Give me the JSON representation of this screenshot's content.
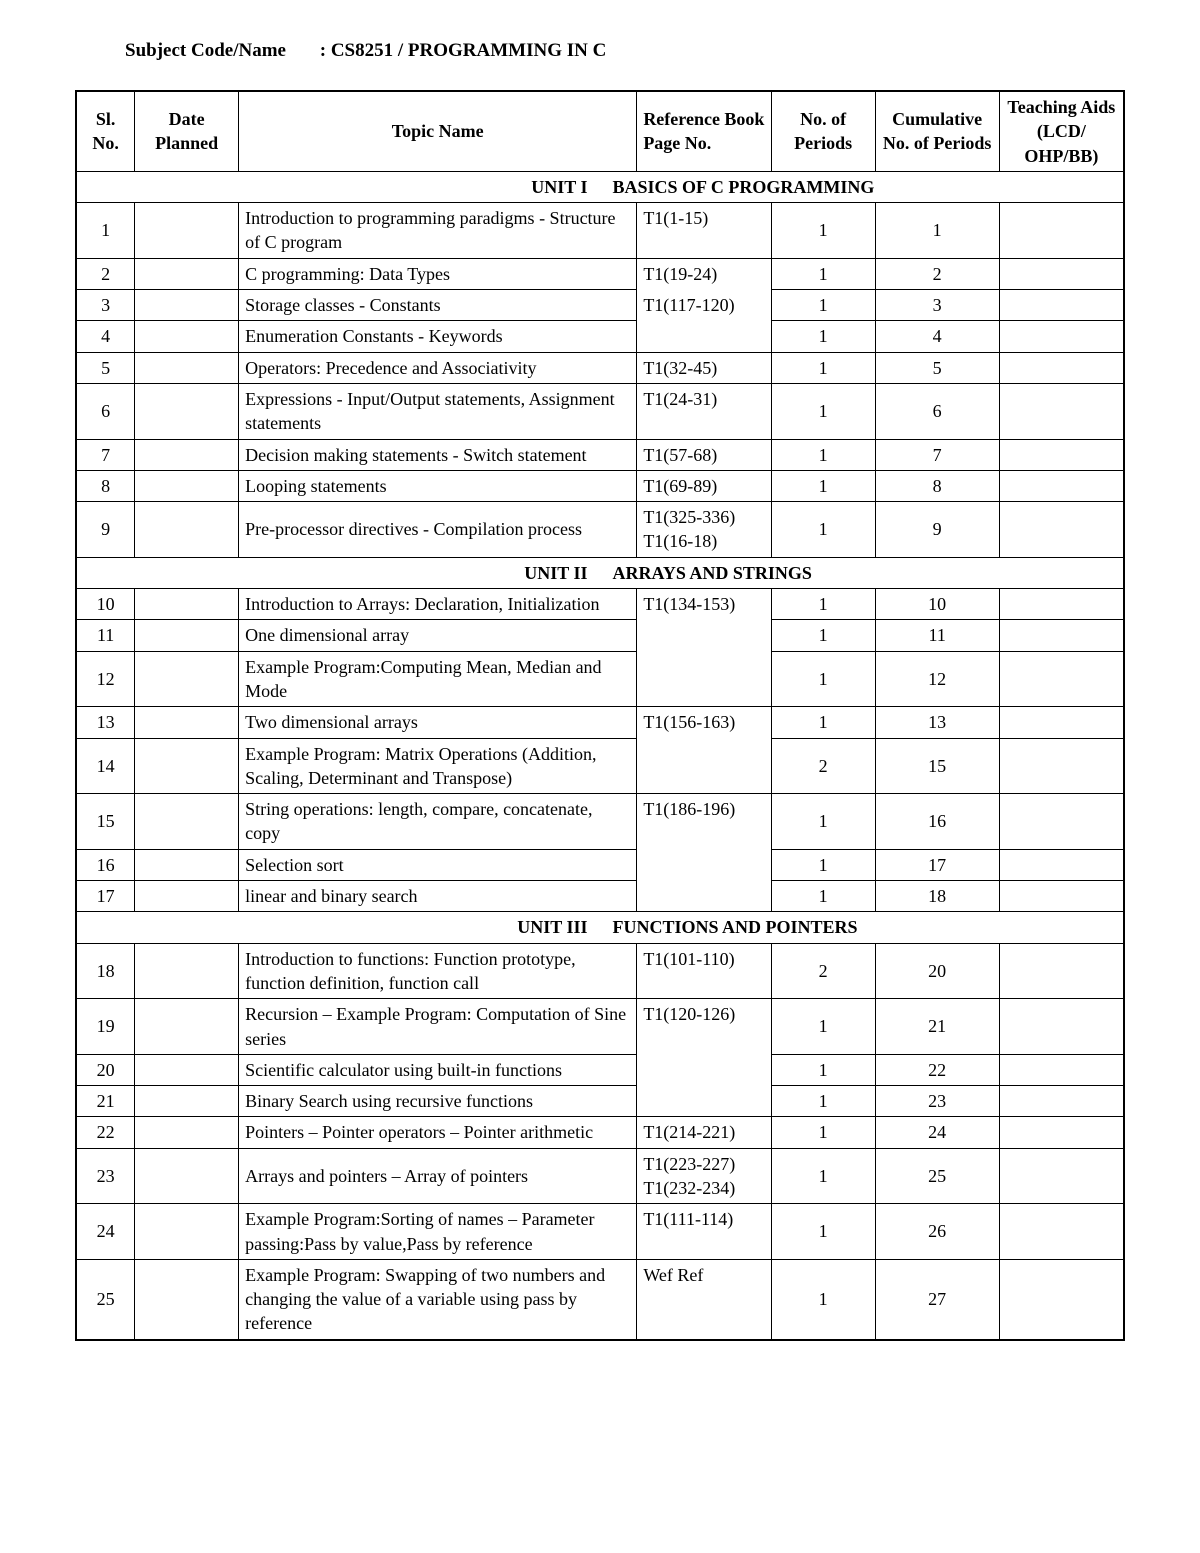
{
  "subject_label": "Subject Code/Name",
  "subject_value": ": CS8251 / PROGRAMMING IN C",
  "headers": {
    "sl": "Sl. No.",
    "date": "Date Planned",
    "topic": "Topic Name",
    "ref": "Reference Book Page No.",
    "periods": "No. of Periods",
    "cum": "Cumulative No. of Periods",
    "aids": "Teaching Aids (LCD/ OHP/BB)"
  },
  "units": [
    {
      "label": "UNIT I",
      "title": "BASICS OF C PROGRAMMING"
    },
    {
      "label": "UNIT II",
      "title": "ARRAYS AND STRINGS"
    },
    {
      "label": "UNIT III",
      "title": "FUNCTIONS AND POINTERS"
    }
  ],
  "rows": {
    "u1": [
      {
        "sl": "1",
        "topic": "Introduction to programming paradigms - Structure of C program",
        "ref": "T1(1-15)",
        "per": "1",
        "cum": "1",
        "ref_open": false
      },
      {
        "sl": "2",
        "topic": "C programming: Data Types",
        "ref": "T1(19-24)",
        "per": "1",
        "cum": "2",
        "ref_open": true
      },
      {
        "sl": "3",
        "topic": "Storage classes - Constants",
        "ref": "T1(117-120)",
        "per": "1",
        "cum": "3",
        "ref_open": true,
        "ref_cont": true
      },
      {
        "sl": "4",
        "topic": "Enumeration Constants - Keywords",
        "ref": "",
        "per": "1",
        "cum": "4",
        "ref_cont": true
      },
      {
        "sl": "5",
        "topic": "Operators: Precedence and Associativity",
        "ref": "T1(32-45)",
        "per": "1",
        "cum": "5"
      },
      {
        "sl": "6",
        "topic": "Expressions - Input/Output statements, Assignment statements",
        "ref": "T1(24-31)",
        "per": "1",
        "cum": "6"
      },
      {
        "sl": "7",
        "topic": "Decision making statements - Switch statement",
        "ref": "T1(57-68)",
        "per": "1",
        "cum": "7"
      },
      {
        "sl": "8",
        "topic": "Looping statements",
        "ref": "T1(69-89)",
        "per": "1",
        "cum": "8"
      },
      {
        "sl": "9",
        "topic": "Pre-processor directives - Compilation process",
        "ref": "T1(325-336) T1(16-18)",
        "per": "1",
        "cum": "9"
      }
    ],
    "u2": [
      {
        "sl": "10",
        "topic": "Introduction to Arrays: Declaration, Initialization",
        "ref": "T1(134-153)",
        "per": "1",
        "cum": "10",
        "ref_open": true
      },
      {
        "sl": "11",
        "topic": "One dimensional array",
        "ref": "",
        "per": "1",
        "cum": "11",
        "ref_cont": true,
        "ref_open": true
      },
      {
        "sl": "12",
        "topic": "Example Program:Computing Mean, Median and Mode",
        "ref": "",
        "per": "1",
        "cum": "12",
        "ref_cont": true
      },
      {
        "sl": "13",
        "topic": "Two dimensional arrays",
        "ref": "T1(156-163)",
        "per": "1",
        "cum": "13",
        "ref_open": true
      },
      {
        "sl": "14",
        "topic": "Example Program: Matrix Operations (Addition, Scaling, Determinant and Transpose)",
        "ref": "",
        "per": "2",
        "cum": "15",
        "ref_cont": true
      },
      {
        "sl": "15",
        "topic": "String operations: length, compare, concatenate, copy",
        "ref": "T1(186-196)",
        "per": "1",
        "cum": "16",
        "ref_open": true
      },
      {
        "sl": "16",
        "topic": "Selection sort",
        "ref": "",
        "per": "1",
        "cum": "17",
        "ref_cont": true,
        "ref_open": true
      },
      {
        "sl": "17",
        "topic": "linear and binary search",
        "ref": "",
        "per": "1",
        "cum": "18",
        "ref_cont": true
      }
    ],
    "u3": [
      {
        "sl": "18",
        "topic": "Introduction to functions: Function prototype, function definition, function call",
        "ref": "T1(101-110)",
        "per": "2",
        "cum": "20"
      },
      {
        "sl": "19",
        "topic": "Recursion – Example Program: Computation of Sine series",
        "ref": "T1(120-126)",
        "per": "1",
        "cum": "21",
        "ref_open": true
      },
      {
        "sl": "20",
        "topic": "Scientific calculator using built-in functions",
        "ref": "",
        "per": "1",
        "cum": "22",
        "ref_cont": true,
        "ref_open": true
      },
      {
        "sl": "21",
        "topic": "Binary Search using recursive functions",
        "ref": "",
        "per": "1",
        "cum": "23",
        "ref_cont": true
      },
      {
        "sl": "22",
        "topic": "Pointers – Pointer operators – Pointer arithmetic",
        "ref": "T1(214-221)",
        "per": "1",
        "cum": "24"
      },
      {
        "sl": "23",
        "topic": "Arrays and pointers – Array of pointers",
        "ref": "T1(223-227) T1(232-234)",
        "per": "1",
        "cum": "25"
      },
      {
        "sl": "24",
        "topic": "Example Program:Sorting of names – Parameter passing:Pass by value,Pass by reference",
        "ref": "T1(111-114)",
        "per": "1",
        "cum": "26"
      },
      {
        "sl": "25",
        "topic": "Example Program: Swapping of two numbers and changing the value of a variable using pass by reference",
        "ref": "Wef Ref",
        "per": "1",
        "cum": "27"
      }
    ]
  }
}
